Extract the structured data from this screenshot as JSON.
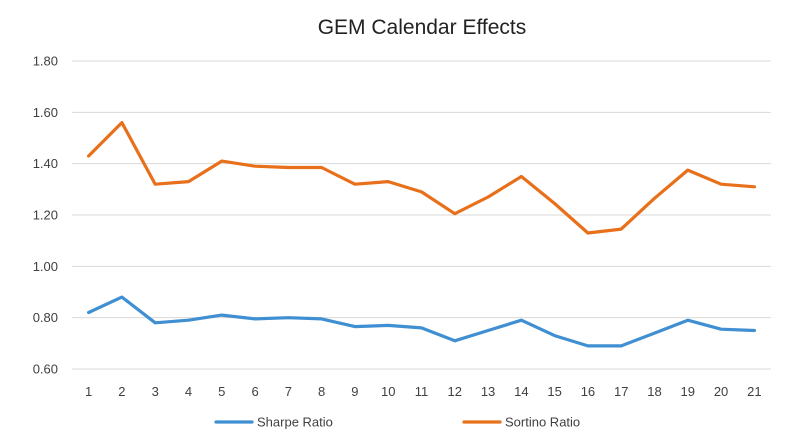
{
  "chart_data": {
    "type": "line",
    "title": "GEM Calendar Effects",
    "xlabel": "",
    "ylabel": "",
    "categories": [
      "1",
      "2",
      "3",
      "4",
      "5",
      "6",
      "7",
      "8",
      "9",
      "10",
      "11",
      "12",
      "13",
      "14",
      "15",
      "16",
      "17",
      "18",
      "19",
      "20",
      "21"
    ],
    "ylim": [
      0.6,
      1.8
    ],
    "yticks": [
      0.6,
      0.8,
      1.0,
      1.2,
      1.4,
      1.6,
      1.8
    ],
    "ytick_labels": [
      "0.60",
      "0.80",
      "1.00",
      "1.20",
      "1.40",
      "1.60",
      "1.80"
    ],
    "grid": true,
    "legend_position": "bottom",
    "series": [
      {
        "name": "Sharpe Ratio",
        "color": "#3f8fd2",
        "values": [
          0.82,
          0.88,
          0.78,
          0.79,
          0.81,
          0.795,
          0.8,
          0.795,
          0.765,
          0.77,
          0.76,
          0.71,
          0.75,
          0.79,
          0.73,
          0.69,
          0.69,
          0.74,
          0.79,
          0.755,
          0.75
        ]
      },
      {
        "name": "Sortino Ratio",
        "color": "#e8701a",
        "values": [
          1.43,
          1.56,
          1.32,
          1.33,
          1.41,
          1.39,
          1.385,
          1.385,
          1.32,
          1.33,
          1.29,
          1.205,
          1.27,
          1.35,
          1.245,
          1.13,
          1.145,
          1.265,
          1.375,
          1.32,
          1.31
        ]
      }
    ]
  }
}
